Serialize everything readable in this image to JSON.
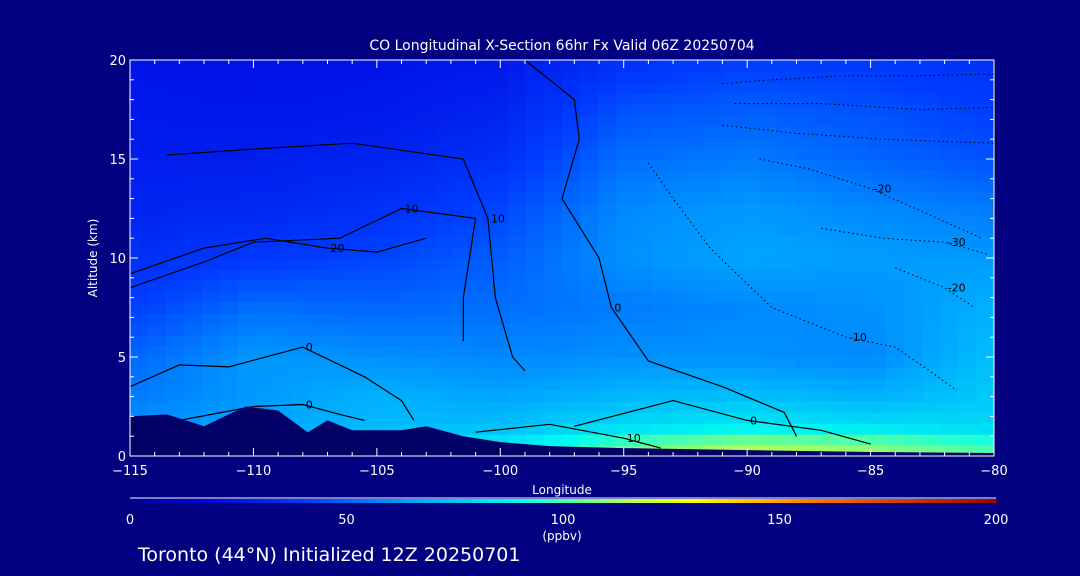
{
  "chart_data": {
    "type": "heatmap",
    "title": "CO Longitudinal X-Section 66hr  Fx Valid 06Z 20250704",
    "xlabel": "Longitude",
    "ylabel": "Altitude (km)",
    "xlim": [
      -115,
      -80
    ],
    "ylim": [
      0,
      20
    ],
    "x_ticks": [
      -115,
      -110,
      -105,
      -100,
      -95,
      -90,
      -85,
      -80
    ],
    "x_tick_labels": [
      "−115",
      "−110",
      "−105",
      "−100",
      "−95",
      "−90",
      "−85",
      "−80"
    ],
    "y_ticks": [
      0,
      5,
      10,
      15,
      20
    ],
    "y_tick_labels": [
      "0",
      "5",
      "10",
      "15",
      "20"
    ],
    "colorbar": {
      "range": [
        0,
        200
      ],
      "ticks": [
        0,
        50,
        100,
        150,
        200
      ],
      "tick_labels": [
        "0",
        "50",
        "100",
        "150",
        "200"
      ],
      "unit": "(ppbv)"
    },
    "columns_x": [
      -115,
      -110,
      -105,
      -100,
      -95,
      -90,
      -85,
      -80
    ],
    "rows_y": [
      0.5,
      1.5,
      3,
      5,
      7.5,
      10,
      12.5,
      15,
      17.5,
      20
    ],
    "grid": [
      [
        70,
        75,
        80,
        85,
        105,
        115,
        110,
        100
      ],
      [
        60,
        65,
        70,
        72,
        80,
        85,
        82,
        78
      ],
      [
        55,
        62,
        68,
        65,
        70,
        72,
        68,
        75
      ],
      [
        50,
        62,
        60,
        58,
        60,
        60,
        58,
        72
      ],
      [
        40,
        52,
        50,
        52,
        55,
        58,
        60,
        68
      ],
      [
        35,
        38,
        42,
        48,
        60,
        65,
        63,
        62
      ],
      [
        30,
        32,
        35,
        42,
        58,
        62,
        58,
        55
      ],
      [
        28,
        28,
        30,
        35,
        52,
        55,
        50,
        45
      ],
      [
        26,
        25,
        26,
        30,
        45,
        48,
        45,
        40
      ],
      [
        24,
        23,
        24,
        26,
        35,
        40,
        38,
        35
      ]
    ],
    "contours": [
      {
        "label": "10",
        "points": [
          [
            -113.5,
            15.2
          ],
          [
            -110,
            15.5
          ],
          [
            -106,
            15.8
          ],
          [
            -101.5,
            15
          ],
          [
            -100.5,
            12
          ],
          [
            -100.2,
            8
          ],
          [
            -99.5,
            5
          ],
          [
            -99,
            4.3
          ]
        ]
      },
      {
        "label": "10",
        "points": [
          [
            -115,
            8.5
          ],
          [
            -112,
            9.8
          ],
          [
            -110,
            10.8
          ],
          [
            -106.5,
            11
          ],
          [
            -104,
            12.5
          ],
          [
            -101,
            12
          ],
          [
            -101.5,
            8
          ],
          [
            -101.5,
            5.8
          ]
        ]
      },
      {
        "label": "20",
        "points": [
          [
            -115,
            9.2
          ],
          [
            -112,
            10.5
          ],
          [
            -109.5,
            11
          ],
          [
            -107,
            10.5
          ],
          [
            -105,
            10.3
          ],
          [
            -103,
            11
          ]
        ]
      },
      {
        "label": "0",
        "points": [
          [
            -99,
            20
          ],
          [
            -97,
            18
          ],
          [
            -96.8,
            16
          ],
          [
            -97.5,
            13
          ],
          [
            -96,
            10
          ],
          [
            -95.5,
            7.5
          ],
          [
            -94,
            4.8
          ],
          [
            -91,
            3.5
          ],
          [
            -88.5,
            2.2
          ],
          [
            -88,
            1
          ]
        ]
      },
      {
        "label": "0",
        "points": [
          [
            -115,
            3.5
          ],
          [
            -113,
            4.6
          ],
          [
            -111,
            4.5
          ],
          [
            -108,
            5.5
          ],
          [
            -105.5,
            4
          ],
          [
            -104,
            2.8
          ],
          [
            -103.5,
            1.8
          ]
        ]
      },
      {
        "label": "0",
        "points": [
          [
            -113,
            1.8
          ],
          [
            -110,
            2.5
          ],
          [
            -108,
            2.6
          ],
          [
            -106.5,
            2.1
          ],
          [
            -105.5,
            1.8
          ]
        ]
      },
      {
        "label": "0",
        "points": [
          [
            -97,
            1.5
          ],
          [
            -93,
            2.8
          ],
          [
            -90,
            1.8
          ],
          [
            -87,
            1.3
          ],
          [
            -85,
            0.6
          ]
        ]
      },
      {
        "label": "10",
        "points": [
          [
            -101,
            1.2
          ],
          [
            -98,
            1.6
          ],
          [
            -95,
            0.9
          ],
          [
            -93.5,
            0.4
          ]
        ]
      },
      {
        "label": "-10",
        "points": [
          [
            -94,
            14.8
          ],
          [
            -93,
            13
          ],
          [
            -91.5,
            10.5
          ],
          [
            -89,
            7.5
          ],
          [
            -86,
            6
          ],
          [
            -84,
            5.5
          ],
          [
            -82.5,
            4.2
          ],
          [
            -81.5,
            3.3
          ]
        ]
      },
      {
        "label": "-20",
        "points": [
          [
            -89.5,
            15
          ],
          [
            -87.5,
            14.5
          ],
          [
            -85,
            13.5
          ],
          [
            -83,
            12.4
          ],
          [
            -80.5,
            11
          ]
        ]
      },
      {
        "label": "-30",
        "points": [
          [
            -87,
            11.5
          ],
          [
            -84.5,
            11
          ],
          [
            -82,
            10.8
          ],
          [
            -80.3,
            10.2
          ]
        ]
      },
      {
        "label": "-20",
        "points": [
          [
            -84,
            9.5
          ],
          [
            -82,
            8.5
          ],
          [
            -80.8,
            7.5
          ]
        ]
      },
      {
        "label": "",
        "points": [
          [
            -91,
            18.8
          ],
          [
            -89,
            19
          ],
          [
            -86,
            19.2
          ],
          [
            -83,
            19.2
          ],
          [
            -80,
            19.3
          ]
        ]
      },
      {
        "label": "",
        "points": [
          [
            -90.5,
            17.8
          ],
          [
            -87,
            17.8
          ],
          [
            -83,
            17.5
          ],
          [
            -80,
            17.6
          ]
        ]
      },
      {
        "label": "",
        "points": [
          [
            -91,
            16.7
          ],
          [
            -88,
            16.3
          ],
          [
            -84.5,
            16
          ],
          [
            -80,
            15.8
          ]
        ]
      }
    ],
    "terrain": [
      [
        -115,
        2.0
      ],
      [
        -113.5,
        2.1
      ],
      [
        -112,
        1.5
      ],
      [
        -111,
        2.1
      ],
      [
        -110.3,
        2.5
      ],
      [
        -109,
        2.3
      ],
      [
        -107.8,
        1.2
      ],
      [
        -107,
        1.8
      ],
      [
        -106,
        1.3
      ],
      [
        -104,
        1.3
      ],
      [
        -103,
        1.5
      ],
      [
        -101.5,
        1.0
      ],
      [
        -100,
        0.7
      ],
      [
        -98,
        0.5
      ],
      [
        -95,
        0.4
      ],
      [
        -90,
        0.3
      ],
      [
        -85,
        0.2
      ],
      [
        -80,
        0.15
      ]
    ]
  },
  "footer": {
    "caption": "Toronto (44°N) Initialized 12Z 20250701"
  }
}
